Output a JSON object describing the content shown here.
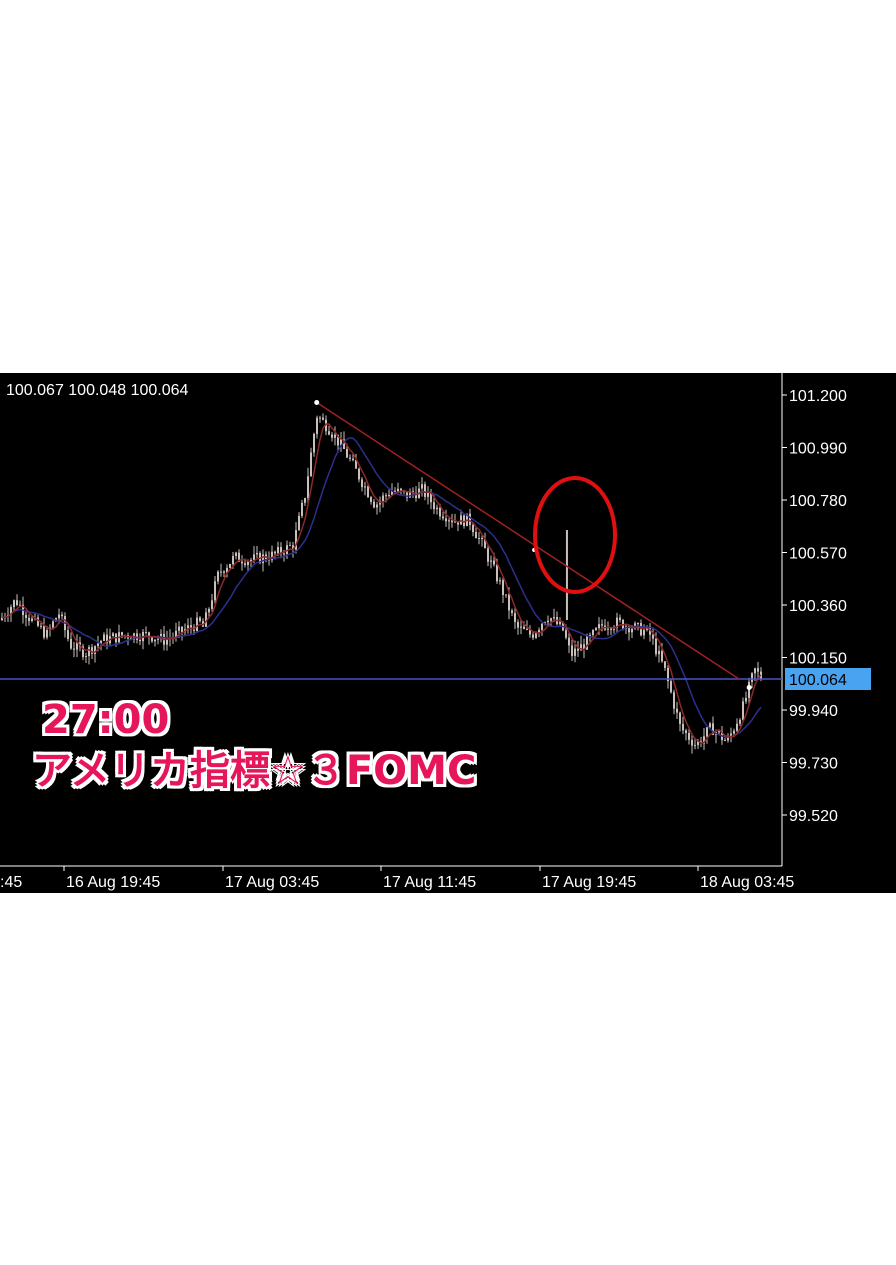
{
  "ohlc_readout": "100.067 100.048 100.064",
  "current_price_tag": "100.064",
  "caption": {
    "time": "27:00",
    "title": "アメリカ指標☆３FOMC"
  },
  "colors": {
    "background": "#000000",
    "candles": "#c9c0bc",
    "fast_ma": "#8b2a2a",
    "slow_ma": "#2c2f8c",
    "trendline": "#a32020",
    "price_line": "#4455c8",
    "price_tag_bg": "#4aa3f0",
    "highlight_circle": "#e01010",
    "caption": "#e6165a"
  },
  "chart_data": {
    "type": "candlestick",
    "y_tick_labels": [
      "101.200",
      "100.990",
      "100.780",
      "100.570",
      "100.360",
      "100.150",
      "99.940",
      "99.730",
      "99.520"
    ],
    "ylim": [
      99.35,
      101.25
    ],
    "x_tick_labels": [
      ":45",
      "16 Aug 19:45",
      "17 Aug 03:45",
      "17 Aug 11:45",
      "17 Aug 19:45",
      "18 Aug 03:45"
    ],
    "grid": false,
    "current_price": 100.064,
    "trendline": {
      "from_price": 101.17,
      "to_price": 100.064
    },
    "annotation": "red circle around the FOMC spike near 17 Aug 19:45",
    "price_path": [
      [
        0,
        100.3
      ],
      [
        0.02,
        100.38
      ],
      [
        0.04,
        100.3
      ],
      [
        0.06,
        100.24
      ],
      [
        0.075,
        100.33
      ],
      [
        0.09,
        100.2
      ],
      [
        0.11,
        100.17
      ],
      [
        0.13,
        100.22
      ],
      [
        0.16,
        100.24
      ],
      [
        0.19,
        100.24
      ],
      [
        0.21,
        100.22
      ],
      [
        0.23,
        100.25
      ],
      [
        0.255,
        100.29
      ],
      [
        0.26,
        100.27
      ],
      [
        0.28,
        100.49
      ],
      [
        0.3,
        100.55
      ],
      [
        0.32,
        100.54
      ],
      [
        0.35,
        100.56
      ],
      [
        0.375,
        100.6
      ],
      [
        0.39,
        100.8
      ],
      [
        0.405,
        101.12
      ],
      [
        0.42,
        101.07
      ],
      [
        0.44,
        100.98
      ],
      [
        0.46,
        100.87
      ],
      [
        0.48,
        100.76
      ],
      [
        0.5,
        100.82
      ],
      [
        0.52,
        100.8
      ],
      [
        0.54,
        100.82
      ],
      [
        0.56,
        100.74
      ],
      [
        0.58,
        100.7
      ],
      [
        0.6,
        100.7
      ],
      [
        0.62,
        100.58
      ],
      [
        0.64,
        100.44
      ],
      [
        0.66,
        100.27
      ],
      [
        0.68,
        100.24
      ],
      [
        0.7,
        100.32
      ],
      [
        0.72,
        100.26
      ],
      [
        0.73,
        100.16
      ],
      [
        0.75,
        100.21
      ],
      [
        0.77,
        100.28
      ],
      [
        0.79,
        100.29
      ],
      [
        0.81,
        100.27
      ],
      [
        0.83,
        100.25
      ],
      [
        0.85,
        100.1
      ],
      [
        0.87,
        99.87
      ],
      [
        0.89,
        99.8
      ],
      [
        0.91,
        99.87
      ],
      [
        0.93,
        99.81
      ],
      [
        0.95,
        99.95
      ],
      [
        0.965,
        100.1
      ],
      [
        0.975,
        100.064
      ]
    ]
  }
}
